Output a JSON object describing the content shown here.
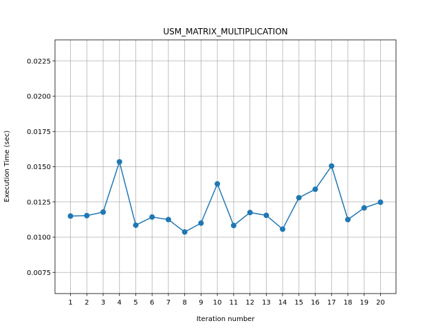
{
  "chart_data": {
    "type": "line",
    "title": "USM_MATRIX_MULTIPLICATION",
    "xlabel": "Iteration number",
    "ylabel": "Execution Time (sec)",
    "x": [
      1,
      2,
      3,
      4,
      5,
      6,
      7,
      8,
      9,
      10,
      11,
      12,
      13,
      14,
      15,
      16,
      17,
      18,
      19,
      20
    ],
    "xticks": [
      "1",
      "2",
      "3",
      "4",
      "5",
      "6",
      "7",
      "8",
      "9",
      "10",
      "11",
      "12",
      "13",
      "14",
      "15",
      "16",
      "17",
      "18",
      "19",
      "20"
    ],
    "xlim": [
      0.05,
      20.95
    ],
    "ylim": [
      0.006,
      0.024
    ],
    "yticks": [
      0.0075,
      0.01,
      0.0125,
      0.015,
      0.0175,
      0.02,
      0.0225
    ],
    "ytick_labels": [
      "0.0075",
      "0.0100",
      "0.0125",
      "0.0150",
      "0.0175",
      "0.0200",
      "0.0225"
    ],
    "grid": true,
    "series": [
      {
        "color": "#1f77b4",
        "marker": "circle",
        "values": [
          0.0115,
          0.01153,
          0.01178,
          0.01535,
          0.01085,
          0.01143,
          0.01125,
          0.01037,
          0.011,
          0.01378,
          0.01083,
          0.01175,
          0.01155,
          0.01057,
          0.0128,
          0.0134,
          0.01505,
          0.01125,
          0.01208,
          0.01248
        ]
      }
    ]
  }
}
